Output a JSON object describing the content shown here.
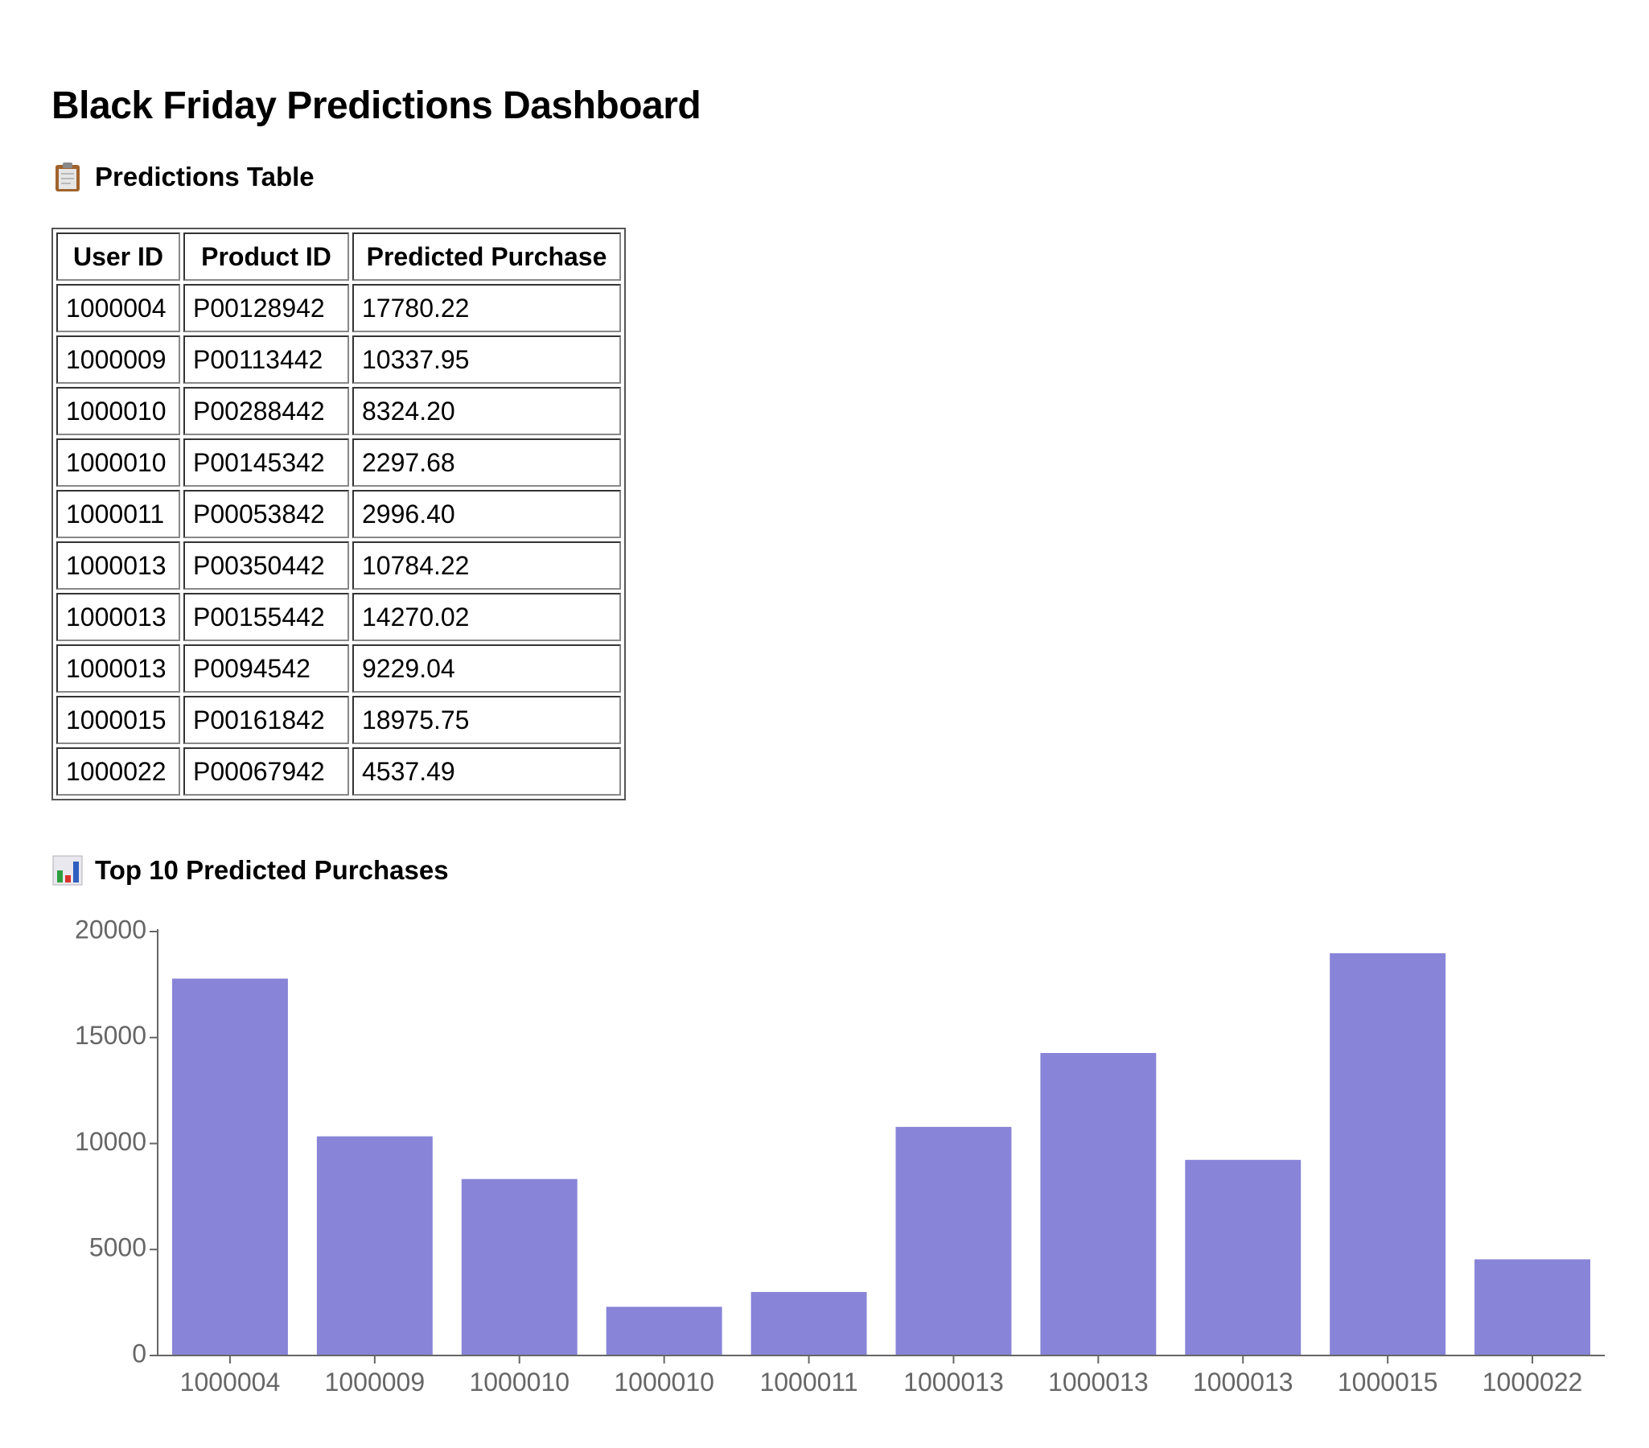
{
  "page": {
    "title": "Black Friday Predictions Dashboard"
  },
  "table_section": {
    "heading": "Predictions Table",
    "icon": "clipboard-icon",
    "columns": [
      "User ID",
      "Product ID",
      "Predicted Purchase"
    ],
    "rows": [
      [
        "1000004",
        "P00128942",
        "17780.22"
      ],
      [
        "1000009",
        "P00113442",
        "10337.95"
      ],
      [
        "1000010",
        "P00288442",
        "8324.20"
      ],
      [
        "1000010",
        "P00145342",
        "2297.68"
      ],
      [
        "1000011",
        "P00053842",
        "2996.40"
      ],
      [
        "1000013",
        "P00350442",
        "10784.22"
      ],
      [
        "1000013",
        "P00155442",
        "14270.02"
      ],
      [
        "1000013",
        "P0094542",
        "9229.04"
      ],
      [
        "1000015",
        "P00161842",
        "18975.75"
      ],
      [
        "1000022",
        "P00067942",
        "4537.49"
      ]
    ]
  },
  "chart_section": {
    "heading": "Top 10 Predicted Purchases",
    "icon": "bar-chart-icon"
  },
  "chart_data": {
    "type": "bar",
    "title": "Top 10 Predicted Purchases",
    "categories": [
      "1000004",
      "1000009",
      "1000010",
      "1000010",
      "1000011",
      "1000013",
      "1000013",
      "1000013",
      "1000015",
      "1000022"
    ],
    "values": [
      17780.22,
      10337.95,
      8324.2,
      2297.68,
      2996.4,
      10784.22,
      14270.02,
      9229.04,
      18975.75,
      4537.49
    ],
    "xlabel": "",
    "ylabel": "",
    "ylim": [
      0,
      20000
    ],
    "yticks": [
      0,
      5000,
      10000,
      15000,
      20000
    ],
    "grid": false,
    "bar_color": "#8884d8",
    "axis_color": "#666666"
  }
}
